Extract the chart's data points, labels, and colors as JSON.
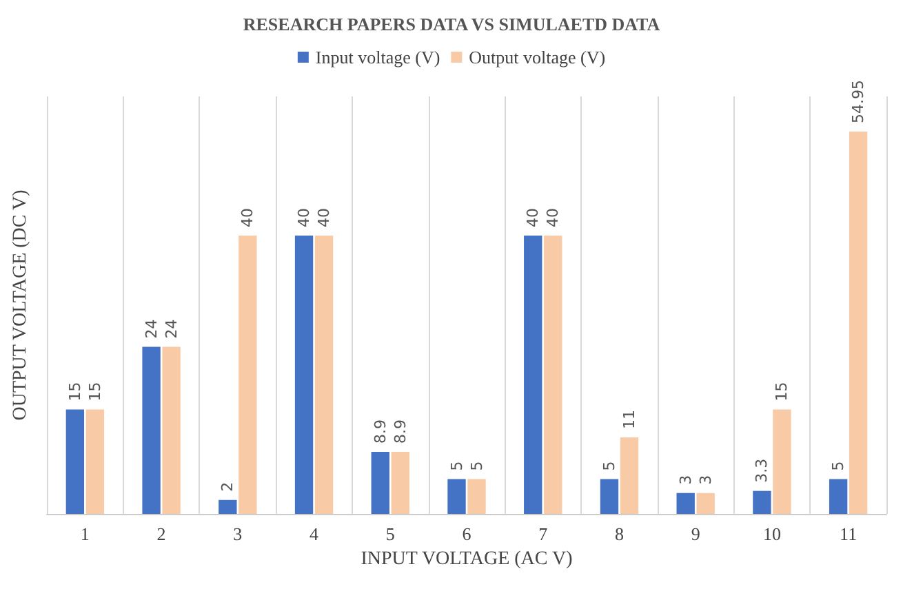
{
  "chart_data": {
    "type": "bar",
    "title": "RESEARCH PAPERS DATA VS SIMULAETD DATA",
    "xlabel": "INPUT VOLTAGE (AC V)",
    "ylabel": "OUTPUT VOLTAGE (DC V)",
    "categories": [
      "1",
      "2",
      "3",
      "4",
      "5",
      "6",
      "7",
      "8",
      "9",
      "10",
      "11"
    ],
    "series": [
      {
        "name": "Input voltage (V)",
        "color": "#4472c4",
        "values": [
          15,
          24,
          2,
          40,
          8.9,
          5,
          40,
          5,
          3,
          3.3,
          5
        ]
      },
      {
        "name": "Output voltage (V)",
        "color": "#f8cba6",
        "values": [
          15,
          24,
          40,
          40,
          8.9,
          5,
          40,
          11,
          3,
          15,
          54.95
        ]
      }
    ],
    "data_labels": true,
    "grid": "x",
    "legend": "top",
    "tick_labels": "x"
  }
}
